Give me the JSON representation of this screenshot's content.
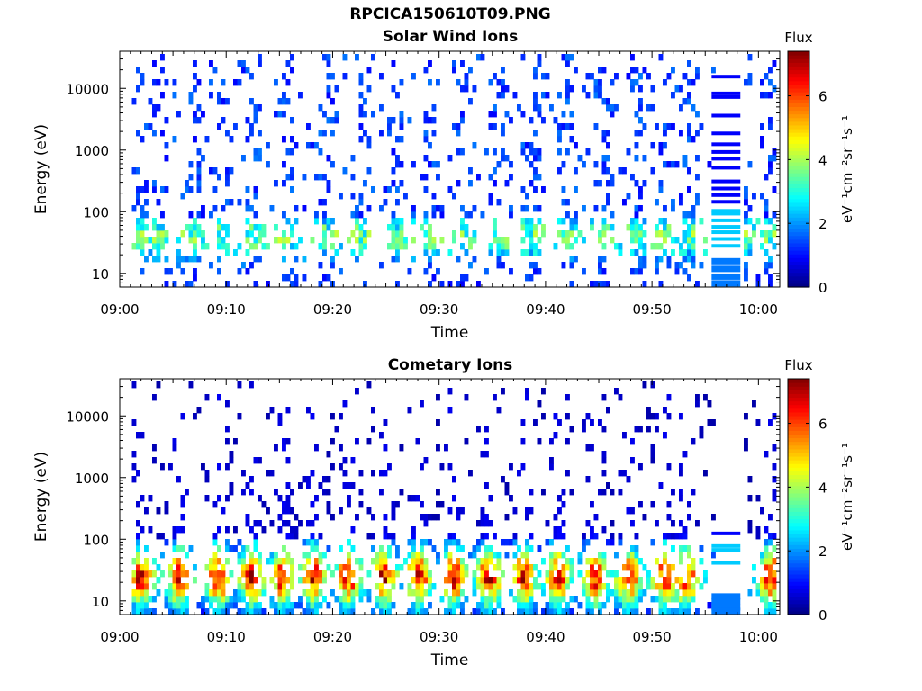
{
  "figure": {
    "title": "RPCICA150610T09.PNG"
  },
  "colorbar": {
    "title": "Flux",
    "label": "eV⁻¹cm⁻²sr⁻¹s⁻¹",
    "range": [
      0,
      7.4
    ],
    "ticks": [
      "0",
      "2",
      "4",
      "6"
    ],
    "colormap": "jet",
    "colors": [
      "#00007f",
      "#0000ff",
      "#007fff",
      "#00ffff",
      "#7fff7f",
      "#ffff00",
      "#ff7f00",
      "#ff0000",
      "#7f0000"
    ]
  },
  "chart_data": [
    {
      "type": "heatmap",
      "title": "Solar Wind Ions",
      "xlabel": "Time",
      "ylabel": "Energy (eV)",
      "x_ticks": [
        "09:00",
        "09:10",
        "09:20",
        "09:30",
        "09:40",
        "09:50",
        "10:00"
      ],
      "y_ticks": [
        "10",
        "100",
        "1000",
        "10000"
      ],
      "y_scale": "log",
      "xlim_minutes": [
        0,
        62
      ],
      "ylim": [
        6,
        40000
      ],
      "color_range": [
        0,
        7.4
      ],
      "bursts_minutes": [
        1.8,
        3.3,
        6.6,
        9.4,
        12.6,
        15.9,
        19.2,
        22.5,
        25.7,
        29.0,
        32.2,
        35.4,
        38.6,
        42.0,
        45.3,
        48.5,
        51.0,
        53.4,
        58.5,
        61.0
      ],
      "energy_peak_eV": 40,
      "peak_flux": 4.0,
      "gap_minutes": [
        55.6,
        58.3
      ],
      "gap_bands_eV": [
        15000,
        8000,
        7000,
        3500,
        1800,
        1200,
        900,
        700,
        500,
        300,
        230,
        180,
        140,
        100,
        90,
        70,
        55,
        45,
        35,
        27,
        16,
        12,
        9,
        7
      ]
    },
    {
      "type": "heatmap",
      "title": "Cometary Ions",
      "xlabel": "Time",
      "ylabel": "Energy (eV)",
      "x_ticks": [
        "09:00",
        "09:10",
        "09:20",
        "09:30",
        "09:40",
        "09:50",
        "10:00"
      ],
      "y_ticks": [
        "10",
        "100",
        "1000",
        "10000"
      ],
      "y_scale": "log",
      "xlim_minutes": [
        0,
        62
      ],
      "ylim": [
        6,
        40000
      ],
      "color_range": [
        0,
        7.4
      ],
      "bursts_minutes": [
        1.8,
        5.4,
        9.1,
        12.2,
        15.1,
        18.0,
        21.3,
        24.6,
        27.9,
        31.2,
        34.5,
        37.8,
        41.0,
        44.4,
        47.6,
        51.0,
        53.0,
        61.0
      ],
      "energy_peak_eV": 25,
      "peak_flux": 7.0,
      "gap_minutes": [
        55.6,
        58.3
      ],
      "gap_bands_eV": [
        120,
        75,
        65,
        40,
        12,
        10,
        8,
        7
      ]
    }
  ]
}
